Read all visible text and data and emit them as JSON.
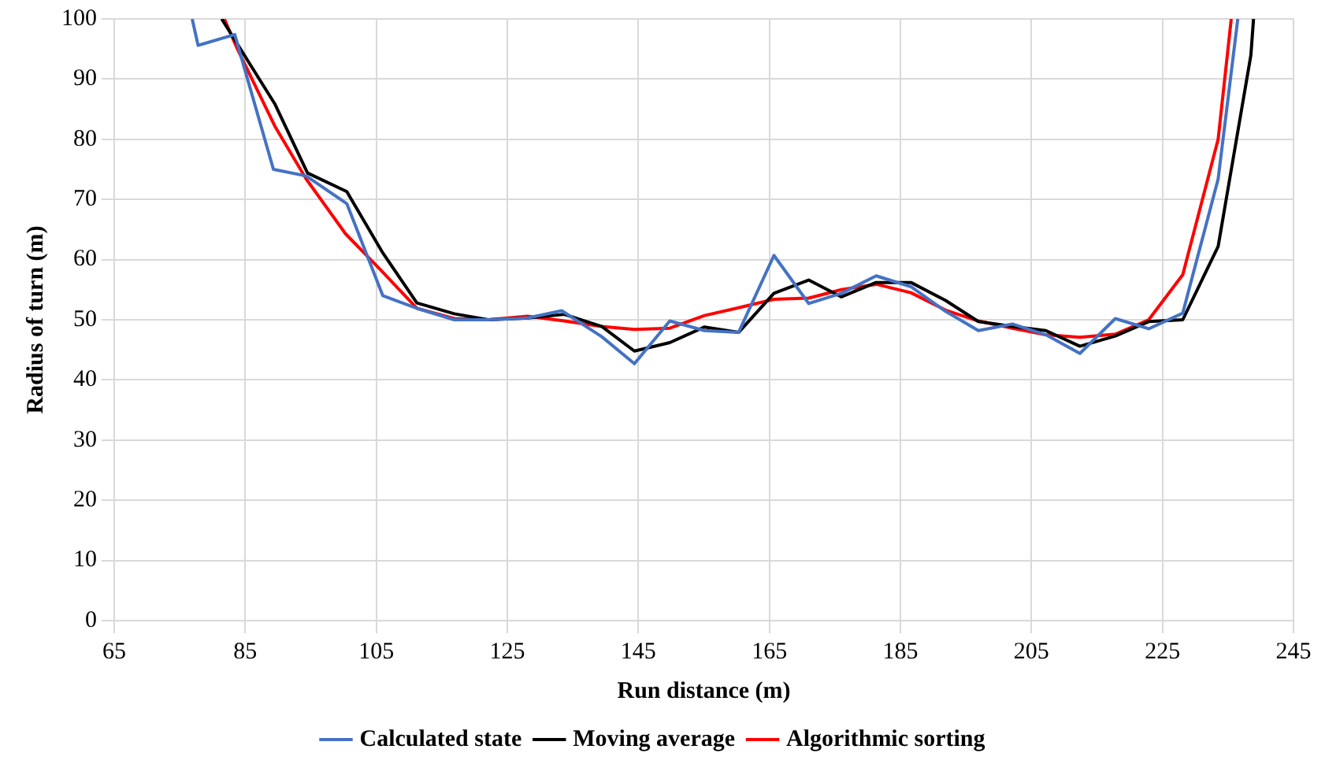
{
  "chart_data": {
    "type": "line",
    "xlabel": "Run distance (m)",
    "ylabel": "Radius of turn (m)",
    "xlim": [
      65,
      245
    ],
    "xticks": [
      65,
      85,
      105,
      125,
      145,
      165,
      185,
      205,
      225,
      245
    ],
    "ylim": [
      0,
      100
    ],
    "yticks": [
      0,
      10,
      20,
      30,
      40,
      50,
      60,
      70,
      80,
      90,
      100
    ],
    "grid": true,
    "legend": "bottom",
    "marker": "none",
    "line_style": "solid",
    "series": [
      {
        "name": "Calculated state",
        "color": "#4472c4",
        "x": [
          76.9,
          77.8,
          83.4,
          89.3,
          94.3,
          100.5,
          106,
          111.2,
          116.9,
          122.1,
          128.1,
          133.3,
          139.4,
          144.4,
          149.8,
          155.1,
          160.3,
          165.7,
          171,
          176,
          181.3,
          186.6,
          191.9,
          196.9,
          202.1,
          207.2,
          212.4,
          217.8,
          222.9,
          228.1,
          233.5,
          236.5
        ],
        "values": [
          100,
          95.6,
          97.4,
          75.0,
          73.9,
          69.3,
          54,
          51.9,
          50.0,
          50,
          50.3,
          51.5,
          47.2,
          42.7,
          49.8,
          48.2,
          47.9,
          60.7,
          52.7,
          54.4,
          57.3,
          55.5,
          51.4,
          48.2,
          49.3,
          47.5,
          44.4,
          50.2,
          48.5,
          51.1,
          73.4,
          100
        ]
      },
      {
        "name": "Moving average",
        "color": "#000000",
        "x": [
          81.4,
          89.5,
          94.5,
          100.5,
          106,
          111.2,
          116.9,
          122.1,
          128.1,
          133.7,
          139.4,
          144.4,
          149.8,
          155.1,
          160.3,
          165.7,
          171,
          176,
          181.3,
          186.6,
          191.9,
          196.9,
          202.1,
          207.2,
          212.4,
          217.8,
          222.9,
          228.1,
          233.5,
          238.5,
          238.9
        ],
        "values": [
          100,
          85.9,
          74.4,
          71.3,
          61.1,
          52.8,
          51,
          50,
          50.3,
          50.9,
          48.9,
          44.8,
          46.2,
          48.8,
          47.9,
          54.4,
          56.6,
          53.8,
          56.2,
          56.2,
          53.2,
          49.7,
          48.9,
          48.2,
          45.6,
          47.3,
          49.7,
          50,
          62.2,
          94,
          100
        ]
      },
      {
        "name": "Algorithmic sorting",
        "color": "#ff0000",
        "x": [
          81.8,
          83.8,
          89.5,
          94.3,
          100.3,
          106,
          111.2,
          116.9,
          122.1,
          128.1,
          133.7,
          139.4,
          144.4,
          149.8,
          155.1,
          160.3,
          165.7,
          171,
          176,
          181.3,
          186.6,
          191.9,
          196.9,
          202.1,
          207.2,
          212.4,
          217.8,
          222.9,
          228.1,
          233.5,
          235.5
        ],
        "values": [
          100,
          95,
          82.2,
          73.4,
          64.3,
          57.9,
          51.9,
          50.2,
          50,
          50.6,
          49.8,
          48.9,
          48.4,
          48.6,
          50.7,
          52,
          53.4,
          53.6,
          55,
          55.9,
          54.5,
          51.6,
          49.8,
          48.6,
          47.5,
          47.1,
          47.6,
          50,
          57.5,
          80,
          100
        ]
      }
    ]
  }
}
